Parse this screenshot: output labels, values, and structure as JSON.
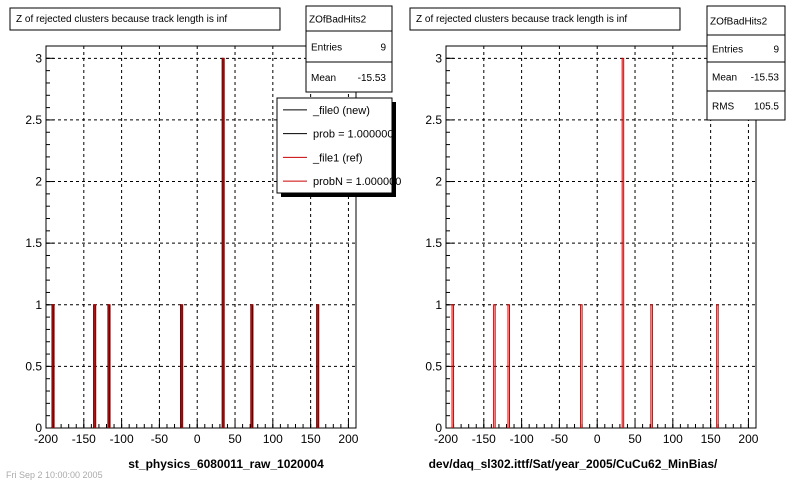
{
  "chart_data": [
    {
      "type": "bar",
      "title": "Z of rejected clusters  because track length is inf",
      "xlabel": "st_physics_6080011_raw_1020004",
      "ylabel": "",
      "xlim": [
        -200,
        210
      ],
      "ylim": [
        0,
        3.1
      ],
      "grid": true,
      "x_ticks": [
        "-200",
        "-150",
        "-100",
        "-50",
        "0",
        "50",
        "100",
        "150",
        "200"
      ],
      "y_ticks": [
        "0",
        "0.5",
        "1",
        "1.5",
        "2",
        "2.5",
        "3"
      ],
      "bin_width": 2,
      "series": [
        {
          "name": "_file0 (new)",
          "color": "#000000",
          "x": [
            -191,
            -136,
            -117,
            -21,
            34,
            72,
            159
          ],
          "values": [
            1,
            1,
            1,
            1,
            3,
            1,
            1
          ]
        },
        {
          "name": "_file1 (ref)",
          "color": "#cc0000",
          "x": [
            -191,
            -136,
            -117,
            -21,
            34,
            72,
            159
          ],
          "values": [
            1,
            1,
            1,
            1,
            3,
            1,
            1
          ]
        }
      ],
      "stats": {
        "name": "ZOfBadHits2",
        "entries_label": "Entries",
        "entries": "9",
        "mean_label": "Mean",
        "mean": "-15.53"
      },
      "legend": {
        "placement": "top-right",
        "entries": [
          {
            "label": "_file0 (new)",
            "color": "#000000"
          },
          {
            "label": "prob = 1.000000",
            "color": "#000000"
          },
          {
            "label": "_file1 (ref)",
            "color": "#cc0000"
          },
          {
            "label": "probN = 1.000000",
            "color": "#cc0000"
          }
        ]
      }
    },
    {
      "type": "bar",
      "title": "Z of rejected clusters  because track length is inf",
      "xlabel": "dev/daq_sl302.ittf/Sat/year_2005/CuCu62_MinBias/",
      "ylabel": "",
      "xlim": [
        -200,
        210
      ],
      "ylim": [
        0,
        3.1
      ],
      "grid": true,
      "x_ticks": [
        "-200",
        "-150",
        "-100",
        "-50",
        "0",
        "50",
        "100",
        "150",
        "200"
      ],
      "y_ticks": [
        "0",
        "0.5",
        "1",
        "1.5",
        "2",
        "2.5",
        "3"
      ],
      "bin_width": 2,
      "series": [
        {
          "name": "",
          "color": "#cc0000",
          "x": [
            -191,
            -136,
            -117,
            -21,
            34,
            72,
            159
          ],
          "values": [
            1,
            1,
            1,
            1,
            3,
            1,
            1
          ]
        }
      ],
      "stats": {
        "name": "ZOfBadHits2",
        "entries_label": "Entries",
        "entries": "9",
        "mean_label": "Mean",
        "mean": "-15.53",
        "rms_label": "RMS",
        "rms": "105.5"
      }
    }
  ],
  "footer": {
    "timestamp": "Fri Sep  2 10:00:00 2005"
  }
}
